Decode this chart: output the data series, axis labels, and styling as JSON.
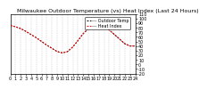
{
  "title": "Milwaukee Outdoor Temperature (vs) Heat Index (Last 24 Hours)",
  "bg_color": "#ffffff",
  "plot_bg_color": "#ffffff",
  "grid_color": "#aaaaaa",
  "line1_color": "#000000",
  "line2_color": "#ff0000",
  "xlim": [
    0,
    24
  ],
  "ylim": [
    -20,
    110
  ],
  "ytick_values": [
    -20,
    -10,
    0,
    10,
    20,
    30,
    40,
    50,
    60,
    70,
    80,
    90,
    100,
    110
  ],
  "ytick_labels": [
    "-20",
    "-10",
    "0",
    "10",
    "20",
    "30",
    "40",
    "50",
    "60",
    "70",
    "80",
    "90",
    "100",
    "110"
  ],
  "xtick_values": [
    0,
    1,
    2,
    3,
    4,
    5,
    6,
    7,
    8,
    9,
    10,
    11,
    12,
    13,
    14,
    15,
    16,
    17,
    18,
    19,
    20,
    21,
    22,
    23,
    24
  ],
  "hours": [
    0,
    1,
    2,
    3,
    4,
    5,
    6,
    7,
    8,
    9,
    10,
    11,
    12,
    13,
    14,
    15,
    16,
    17,
    18,
    19,
    20,
    21,
    22,
    23,
    24
  ],
  "temp": [
    85,
    82,
    78,
    72,
    65,
    58,
    50,
    42,
    35,
    28,
    25,
    28,
    38,
    52,
    67,
    78,
    84,
    88,
    84,
    75,
    65,
    55,
    45,
    40,
    40
  ],
  "heat_index": [
    85,
    82,
    78,
    72,
    65,
    58,
    50,
    42,
    35,
    28,
    25,
    28,
    38,
    52,
    67,
    78,
    90,
    95,
    88,
    75,
    65,
    55,
    45,
    40,
    40
  ],
  "title_fontsize": 4.5,
  "tick_fontsize": 3.5,
  "legend_fontsize": 3.5,
  "line_width": 0.7,
  "legend_label1": "--- Outdoor Temp",
  "legend_label2": "--- Heat Index"
}
